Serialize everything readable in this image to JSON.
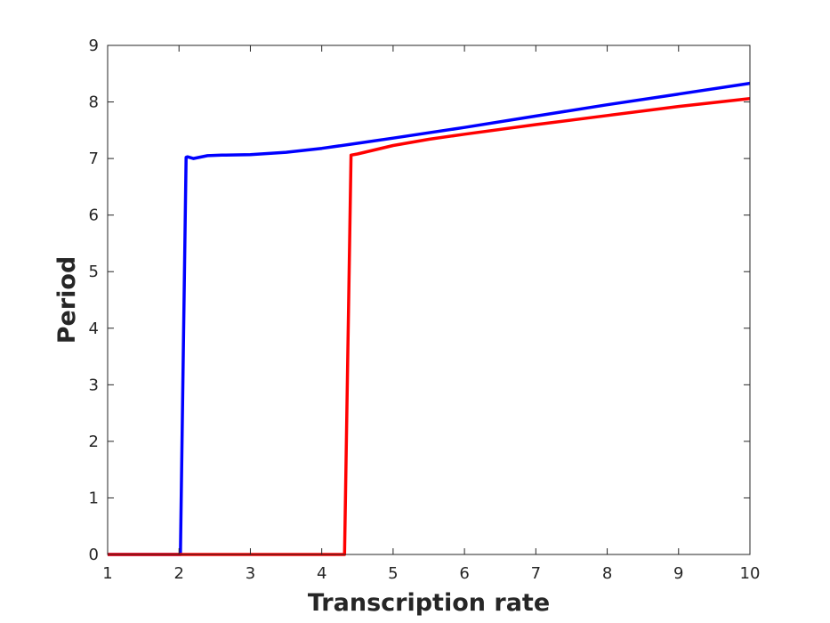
{
  "chart_data": {
    "type": "line",
    "title": "",
    "xlabel": "Transcription rate",
    "ylabel": "Period",
    "xlim": [
      1,
      10
    ],
    "ylim": [
      0,
      9
    ],
    "xticks": [
      1,
      2,
      3,
      4,
      5,
      6,
      7,
      8,
      9,
      10
    ],
    "yticks": [
      0,
      1,
      2,
      3,
      4,
      5,
      6,
      7,
      8,
      9
    ],
    "grid": false,
    "legend": "none",
    "series": [
      {
        "color": "#0000ff",
        "x": [
          1,
          2.0,
          2.02,
          2.1,
          2.12,
          2.2,
          2.4,
          2.6,
          3.0,
          3.5,
          4.0,
          4.5,
          5.0,
          6.0,
          7.0,
          8.0,
          9.0,
          10.0
        ],
        "y": [
          0,
          0,
          0,
          7.02,
          7.03,
          7.0,
          7.05,
          7.06,
          7.07,
          7.11,
          7.18,
          7.27,
          7.36,
          7.55,
          7.75,
          7.95,
          8.14,
          8.33
        ]
      },
      {
        "color": "#ff0000",
        "x": [
          1,
          4.3,
          4.32,
          4.41,
          4.5,
          5.0,
          5.5,
          6.0,
          7.0,
          8.0,
          9.0,
          10.0
        ],
        "y": [
          0,
          0,
          0,
          7.06,
          7.08,
          7.23,
          7.34,
          7.43,
          7.6,
          7.76,
          7.92,
          8.06
        ]
      }
    ]
  }
}
